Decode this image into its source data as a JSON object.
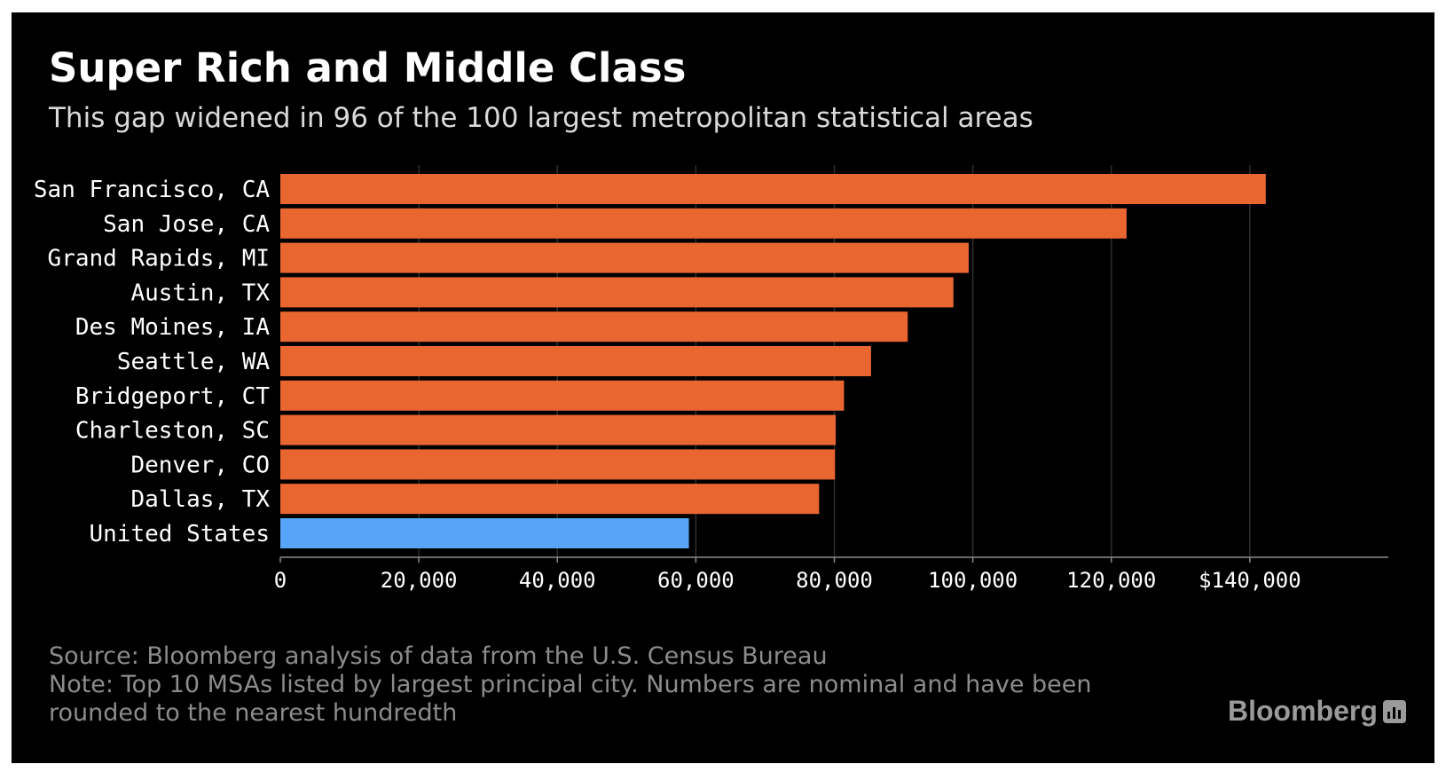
{
  "title": "Super Rich and Middle Class",
  "subtitle": "This gap widened in 96 of the 100 largest metropolitan statistical areas",
  "source": "Source: Bloomberg analysis of data from the U.S. Census Bureau",
  "note_line1": "Note: Top 10 MSAs listed by largest principal city. Numbers are nominal and have been",
  "note_line2": "rounded to the nearest hundredth",
  "brand": "Bloomberg",
  "colors": {
    "background": "#000000",
    "metro_bar": "#e96631",
    "us_bar": "#58a4f8",
    "gridline": "#2e2e2e",
    "axis": "#8a8a8a"
  },
  "chart_data": {
    "type": "bar",
    "orientation": "horizontal",
    "title": "Super Rich and Middle Class",
    "subtitle": "This gap widened in 96 of the 100 largest metropolitan statistical areas",
    "xlabel": "",
    "ylabel": "",
    "xlim": [
      0,
      160000
    ],
    "grid": true,
    "x_ticks": [
      {
        "value": 0,
        "label": "0"
      },
      {
        "value": 20000,
        "label": "20,000"
      },
      {
        "value": 40000,
        "label": "40,000"
      },
      {
        "value": 60000,
        "label": "60,000"
      },
      {
        "value": 80000,
        "label": "80,000"
      },
      {
        "value": 100000,
        "label": "100,000"
      },
      {
        "value": 120000,
        "label": "120,000"
      },
      {
        "value": 140000,
        "label": "$140,000"
      }
    ],
    "categories": [
      "San Francisco, CA",
      "San Jose, CA",
      "Grand Rapids, MI",
      "Austin, TX",
      "Des Moines, IA",
      "Seattle, WA",
      "Bridgeport, CT",
      "Charleston, SC",
      "Denver, CO",
      "Dallas, TX",
      "United States"
    ],
    "values": [
      142300,
      122200,
      99400,
      97200,
      90600,
      85300,
      81400,
      80200,
      80100,
      77800,
      59000
    ],
    "highlight": [
      "United States"
    ]
  }
}
